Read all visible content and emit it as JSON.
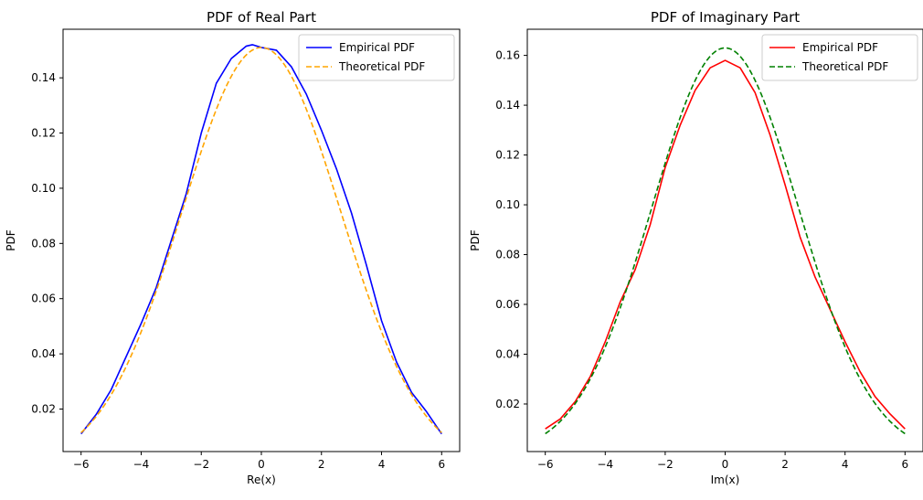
{
  "chart_data": [
    {
      "type": "line",
      "title": "PDF of Real Part",
      "xlabel": "Re(x)",
      "ylabel": "PDF",
      "xlim": [
        -6.6,
        6.6
      ],
      "ylim": [
        0.0046,
        0.1576
      ],
      "xticks": [
        -6,
        -4,
        -2,
        0,
        2,
        4,
        6
      ],
      "yticks": [
        0.02,
        0.04,
        0.06,
        0.08,
        0.1,
        0.12,
        0.14
      ],
      "xtick_labels": [
        "−6",
        "−4",
        "−2",
        "0",
        "2",
        "4",
        "6"
      ],
      "ytick_labels": [
        "0.02",
        "0.04",
        "0.06",
        "0.08",
        "0.10",
        "0.12",
        "0.14"
      ],
      "grid": false,
      "legend_position": "top-right",
      "series": [
        {
          "name": "Empirical PDF",
          "color": "#0000ff",
          "style": "solid",
          "x": [
            -6,
            -5.5,
            -5,
            -4.5,
            -4,
            -3.5,
            -3,
            -2.5,
            -2,
            -1.5,
            -1,
            -0.5,
            -0.3,
            0,
            0.5,
            1,
            1.5,
            2,
            2.5,
            3,
            3.5,
            4,
            4.5,
            5,
            5.5,
            6
          ],
          "y": [
            0.011,
            0.018,
            0.027,
            0.039,
            0.051,
            0.064,
            0.081,
            0.098,
            0.12,
            0.138,
            0.147,
            0.1515,
            0.152,
            0.151,
            0.15,
            0.144,
            0.134,
            0.121,
            0.107,
            0.091,
            0.072,
            0.052,
            0.037,
            0.026,
            0.019,
            0.011
          ]
        },
        {
          "name": "Theoretical PDF",
          "color": "#ffa500",
          "style": "dashed",
          "x": [
            -6,
            -5.5,
            -5,
            -4.5,
            -4,
            -3.5,
            -3,
            -2.5,
            -2,
            -1.5,
            -1,
            -0.5,
            0,
            0.5,
            1,
            1.5,
            2,
            2.5,
            3,
            3.5,
            4,
            4.5,
            5,
            5.5,
            6
          ],
          "y": [
            0.0123,
            0.0189,
            0.0279,
            0.0394,
            0.0533,
            0.0692,
            0.0862,
            0.1031,
            0.1183,
            0.1304,
            0.1382,
            0.1428,
            0.151,
            0.1428,
            0.1382,
            0.1304,
            0.1183,
            0.1031,
            0.0862,
            0.0692,
            0.0533,
            0.0394,
            0.0279,
            0.0189,
            0.0123
          ]
        }
      ]
    },
    {
      "type": "line",
      "title": "PDF of Imaginary Part",
      "xlabel": "Im(x)",
      "ylabel": "PDF",
      "xlim": [
        -6.6,
        6.6
      ],
      "ylim": [
        0.0009,
        0.1705
      ],
      "xticks": [
        -6,
        -4,
        -2,
        0,
        2,
        4,
        6
      ],
      "yticks": [
        0.02,
        0.04,
        0.06,
        0.08,
        0.1,
        0.12,
        0.14,
        0.16
      ],
      "xtick_labels": [
        "−6",
        "−4",
        "−2",
        "0",
        "2",
        "4",
        "6"
      ],
      "ytick_labels": [
        "0.02",
        "0.04",
        "0.06",
        "0.08",
        "0.10",
        "0.12",
        "0.14",
        "0.16"
      ],
      "grid": false,
      "legend_position": "top-right",
      "series": [
        {
          "name": "Empirical PDF",
          "color": "#ff0000",
          "style": "solid",
          "x": [
            -6,
            -5.5,
            -5,
            -4.5,
            -4,
            -3.5,
            -3,
            -2.5,
            -2,
            -1.5,
            -1,
            -0.5,
            0,
            0.5,
            1,
            1.5,
            2,
            2.5,
            3,
            3.5,
            4,
            4.5,
            5,
            5.5,
            6
          ],
          "y": [
            0.01,
            0.014,
            0.021,
            0.031,
            0.045,
            0.061,
            0.074,
            0.092,
            0.115,
            0.132,
            0.146,
            0.155,
            0.158,
            0.155,
            0.145,
            0.128,
            0.108,
            0.087,
            0.071,
            0.058,
            0.045,
            0.033,
            0.023,
            0.016,
            0.01
          ]
        },
        {
          "name": "Theoretical PDF",
          "color": "#008000",
          "style": "dashed",
          "x": [
            -6,
            -5.5,
            -5,
            -4.5,
            -4,
            -3.5,
            -3,
            -2.5,
            -2,
            -1.5,
            -1,
            -0.5,
            0,
            0.5,
            1,
            1.5,
            2,
            2.5,
            3,
            3.5,
            4,
            4.5,
            5,
            5.5,
            6
          ],
          "y": [
            0.0088,
            0.0143,
            0.0222,
            0.0329,
            0.0463,
            0.0622,
            0.0795,
            0.0971,
            0.113,
            0.1434,
            0.1434,
            0.1589,
            0.163,
            0.1589,
            0.1434,
            0.1434,
            0.113,
            0.0971,
            0.0795,
            0.0622,
            0.0463,
            0.0329,
            0.0222,
            0.0143,
            0.0088
          ]
        }
      ]
    }
  ]
}
